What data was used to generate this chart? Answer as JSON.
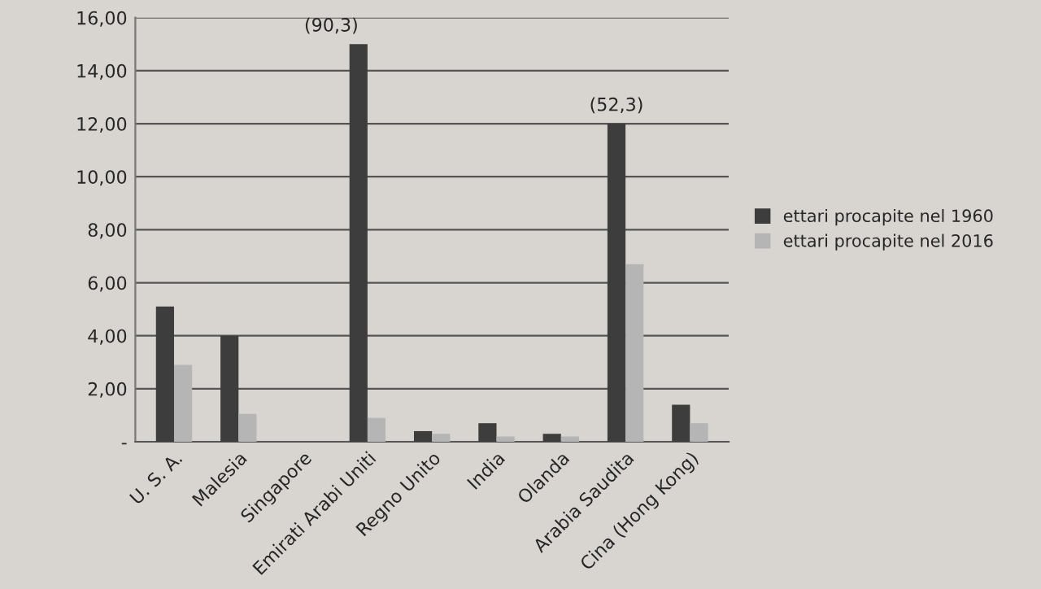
{
  "chart_data": {
    "type": "bar",
    "categories": [
      "U. S. A.",
      "Malesia",
      "Singapore",
      "Emirati Arabi Uniti",
      "Regno Unito",
      "India",
      "Olanda",
      "Arabia Saudita",
      "Cina (Hong Kong)"
    ],
    "series": [
      {
        "name": "ettari procapite nel 1960",
        "color": "#3d3d3d",
        "values": [
          5.1,
          4.0,
          null,
          15.0,
          0.4,
          0.7,
          0.3,
          12.0,
          1.4
        ]
      },
      {
        "name": "ettari procapite nel 2016",
        "color": "#b5b5b5",
        "values": [
          2.9,
          1.05,
          null,
          0.9,
          0.3,
          0.2,
          0.2,
          6.7,
          0.7
        ]
      }
    ],
    "annotations": [
      {
        "text": "(90,3)",
        "x": "Emirati Arabi Uniti",
        "y": 15.0
      },
      {
        "text": "(52,3)",
        "x": "Arabia Saudita",
        "y": 12.0
      }
    ],
    "ylim": [
      0,
      16
    ],
    "yticks": [
      {
        "value": 0,
        "label": "-"
      },
      {
        "value": 2,
        "label": "2,00"
      },
      {
        "value": 4,
        "label": "4,00"
      },
      {
        "value": 6,
        "label": "6,00"
      },
      {
        "value": 8,
        "label": "8,00"
      },
      {
        "value": 10,
        "label": "10,00"
      },
      {
        "value": 12,
        "label": "12,00"
      },
      {
        "value": 14,
        "label": "14,00"
      },
      {
        "value": 16,
        "label": "16,00"
      }
    ],
    "grid": "y",
    "legend": "right"
  }
}
